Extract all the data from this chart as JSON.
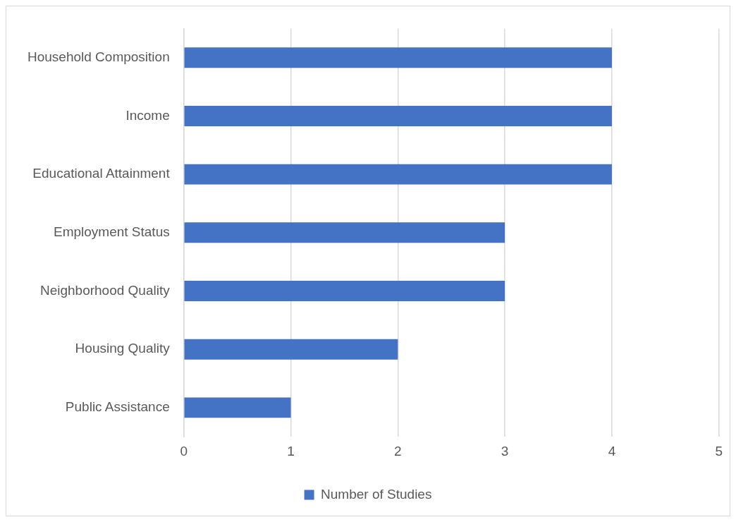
{
  "chart_data": {
    "type": "bar",
    "orientation": "horizontal",
    "categories": [
      "Household Composition",
      "Income",
      "Educational Attainment",
      "Employment Status",
      "Neighborhood Quality",
      "Housing Quality",
      "Public Assistance"
    ],
    "series": [
      {
        "name": "Number of Studies",
        "color": "#4472c4",
        "values": [
          4,
          4,
          4,
          3,
          3,
          2,
          1
        ]
      }
    ],
    "xlim": [
      0,
      5
    ],
    "xticks": [
      0,
      1,
      2,
      3,
      4,
      5
    ],
    "grid": "x",
    "legend": "bottom"
  }
}
